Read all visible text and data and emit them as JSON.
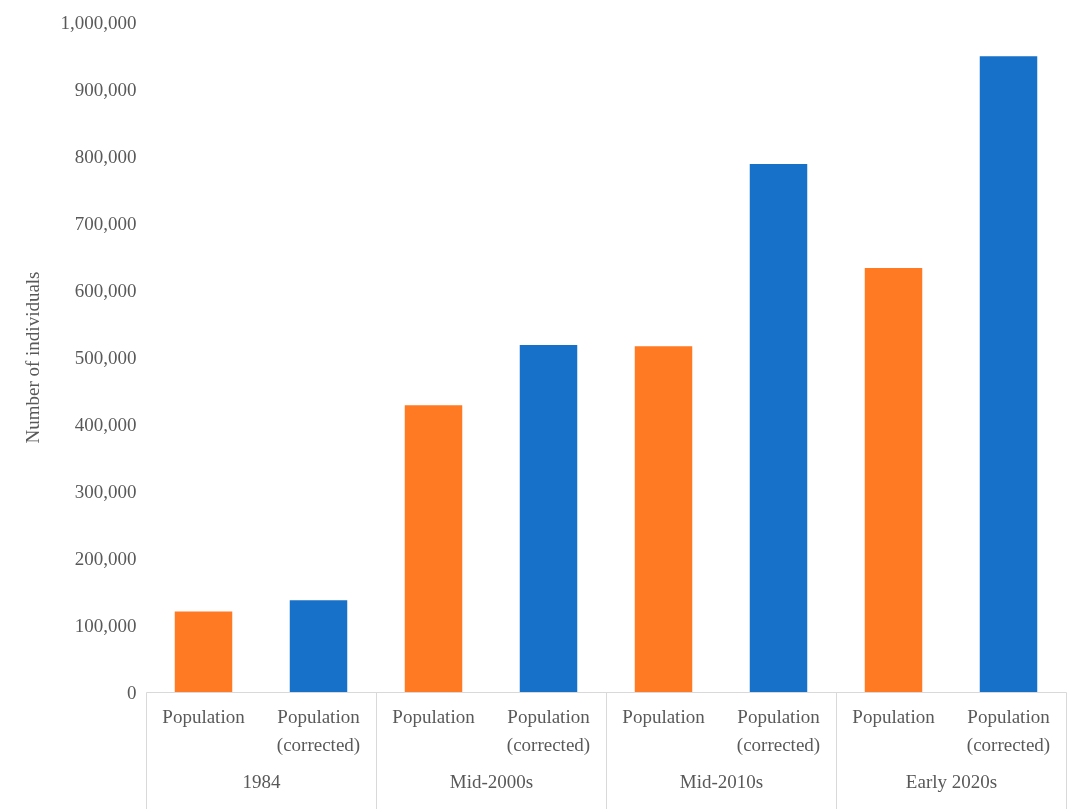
{
  "chart_data": {
    "type": "bar",
    "ylabel": "Number of individuals",
    "categories": [
      "1984",
      "Mid-2000s",
      "Mid-2010s",
      "Early 2020s"
    ],
    "series": [
      {
        "name": "Population",
        "color": "#ff7a22",
        "values": [
          120000,
          428000,
          516000,
          633000
        ]
      },
      {
        "name": "Population (corrected)",
        "color": "#1771c8",
        "values": [
          137000,
          518000,
          788000,
          949000
        ]
      }
    ],
    "ylim": [
      0,
      1000000
    ],
    "yticks": [
      0,
      {
        "value": 100000,
        "label": "100,000"
      },
      {
        "value": 200000,
        "label": "200,000"
      },
      {
        "value": 300000,
        "label": "300,000"
      },
      {
        "value": 400000,
        "label": "400,000"
      },
      {
        "value": 500000,
        "label": "500,000"
      },
      {
        "value": 600000,
        "label": "600,000"
      },
      {
        "value": 700000,
        "label": "700,000"
      },
      {
        "value": 800000,
        "label": "800,000"
      },
      {
        "value": 900000,
        "label": "900,000"
      },
      {
        "value": 1000000,
        "label": "1,000,000"
      }
    ],
    "grid": false,
    "legend": false
  }
}
